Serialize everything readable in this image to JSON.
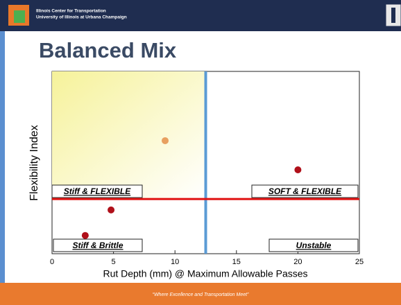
{
  "header": {
    "line1": "Illinois Center for Transportation",
    "line2": "University of Illinois at Urbana Champaign"
  },
  "slide_title": "Balanced Mix",
  "footer": "“Where Excellence and Transportation Meet”",
  "chart_data": {
    "type": "scatter",
    "x_label": "Rut Depth (mm) @ Maximum Allowable Passes",
    "y_label": "Flexibility Index",
    "x": [
      9.2,
      20,
      4.8,
      2.7
    ],
    "y": [
      6.2,
      4.6,
      2.4,
      1.0
    ],
    "colors": [
      "#e8a060",
      "#b0101a",
      "#b0101a",
      "#b0101a"
    ],
    "xlim": [
      0,
      25
    ],
    "xticks": [
      0,
      5,
      10,
      15,
      20,
      25
    ],
    "ylim": [
      0,
      10
    ],
    "threshold_x": 12.5,
    "threshold_y": 3.0,
    "threshold_x_color": "#5b9bd5",
    "threshold_y_color": "#e01010",
    "quadrant_labels": [
      "Stiff & FLEXIBLE",
      "SOFT & FLEXIBLE",
      "Stiff & Brittle",
      "Unstable"
    ]
  }
}
